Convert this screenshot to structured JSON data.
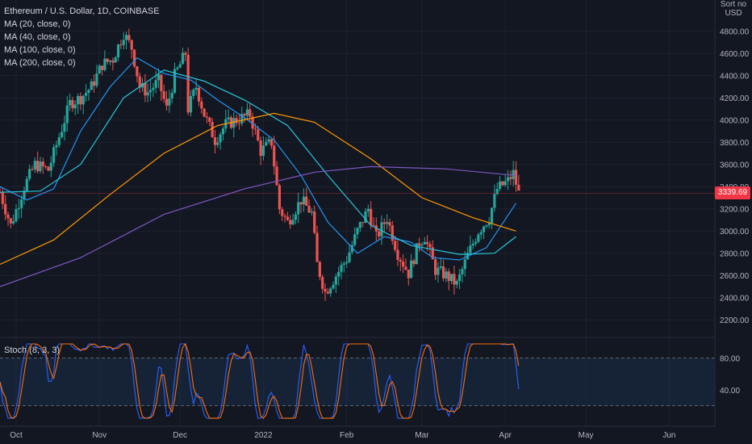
{
  "legend": {
    "title": "Ethereum / U.S. Dollar, 1D, COINBASE",
    "ma": [
      "MA (20, close, 0)",
      "MA (40, close, 0)",
      "MA (100, close, 0)",
      "MA (200, close, 0)"
    ]
  },
  "axis": {
    "unit": "Sort no USD",
    "last_price": "3339.69"
  },
  "stoch_label": "Stoch (8, 3, 3)",
  "colors": {
    "background": "#131722",
    "up": "#26a69a",
    "down": "#ef5350",
    "ma20": "#2196f3",
    "ma40": "#26c6da",
    "ma100": "#ff9800",
    "ma200": "#7e57c2",
    "stoch_k": "#2962ff",
    "stoch_d": "#ff6d00",
    "price_line": "#f23645"
  },
  "chart_data": {
    "type": "candlestick",
    "title": "Ethereum / U.S. Dollar, 1D, COINBASE",
    "y_ticks": [
      "4800.00",
      "4600.00",
      "4400.00",
      "4200.00",
      "4000.00",
      "3800.00",
      "3600.00",
      "3400.00",
      "3200.00",
      "3000.00",
      "2800.00",
      "2600.00",
      "2400.00",
      "2200.00"
    ],
    "y_range": [
      2100,
      4950
    ],
    "x_ticks": [
      "Oct",
      "Nov",
      "Dec",
      "2022",
      "Feb",
      "Mar",
      "Apr",
      "May",
      "Jun"
    ],
    "x_range": [
      "2021-09-25",
      "2022-06-18"
    ],
    "last_close": 3339.69,
    "series": [
      {
        "name": "MA (20, close, 0)",
        "points": [
          [
            "2021-09-25",
            3400
          ],
          [
            "2021-10-05",
            3280
          ],
          [
            "2021-10-15",
            3380
          ],
          [
            "2021-10-25",
            3900
          ],
          [
            "2021-11-05",
            4300
          ],
          [
            "2021-11-15",
            4560
          ],
          [
            "2021-11-25",
            4420
          ],
          [
            "2021-12-05",
            4360
          ],
          [
            "2021-12-15",
            4180
          ],
          [
            "2021-12-25",
            4020
          ],
          [
            "2022-01-05",
            3820
          ],
          [
            "2022-01-15",
            3500
          ],
          [
            "2022-01-25",
            3080
          ],
          [
            "2022-02-05",
            2800
          ],
          [
            "2022-02-15",
            2950
          ],
          [
            "2022-02-25",
            2900
          ],
          [
            "2022-03-05",
            2760
          ],
          [
            "2022-03-15",
            2740
          ],
          [
            "2022-03-25",
            2850
          ],
          [
            "2022-04-05",
            3250
          ]
        ]
      },
      {
        "name": "MA (40, close, 0)",
        "points": [
          [
            "2021-09-25",
            3350
          ],
          [
            "2021-10-10",
            3360
          ],
          [
            "2021-10-25",
            3600
          ],
          [
            "2021-11-10",
            4200
          ],
          [
            "2021-11-25",
            4450
          ],
          [
            "2021-12-10",
            4350
          ],
          [
            "2021-12-25",
            4180
          ],
          [
            "2022-01-10",
            3950
          ],
          [
            "2022-01-25",
            3500
          ],
          [
            "2022-02-10",
            3050
          ],
          [
            "2022-02-25",
            2870
          ],
          [
            "2022-03-15",
            2790
          ],
          [
            "2022-03-28",
            2800
          ],
          [
            "2022-04-05",
            2950
          ]
        ]
      },
      {
        "name": "MA (100, close, 0)",
        "points": [
          [
            "2021-09-25",
            2700
          ],
          [
            "2021-10-15",
            2920
          ],
          [
            "2021-11-05",
            3330
          ],
          [
            "2021-11-25",
            3700
          ],
          [
            "2021-12-15",
            3950
          ],
          [
            "2022-01-05",
            4060
          ],
          [
            "2022-01-20",
            3980
          ],
          [
            "2022-02-10",
            3650
          ],
          [
            "2022-03-01",
            3300
          ],
          [
            "2022-03-20",
            3120
          ],
          [
            "2022-04-05",
            3000
          ]
        ]
      },
      {
        "name": "MA (200, close, 0)",
        "points": [
          [
            "2021-09-25",
            2500
          ],
          [
            "2021-10-25",
            2760
          ],
          [
            "2021-11-25",
            3150
          ],
          [
            "2021-12-25",
            3380
          ],
          [
            "2022-01-20",
            3530
          ],
          [
            "2022-02-10",
            3580
          ],
          [
            "2022-03-10",
            3560
          ],
          [
            "2022-04-05",
            3500
          ]
        ]
      }
    ],
    "stoch": {
      "y_ticks": [
        "80.00",
        "40.00"
      ],
      "overbought": 80,
      "oversold": 20
    }
  }
}
